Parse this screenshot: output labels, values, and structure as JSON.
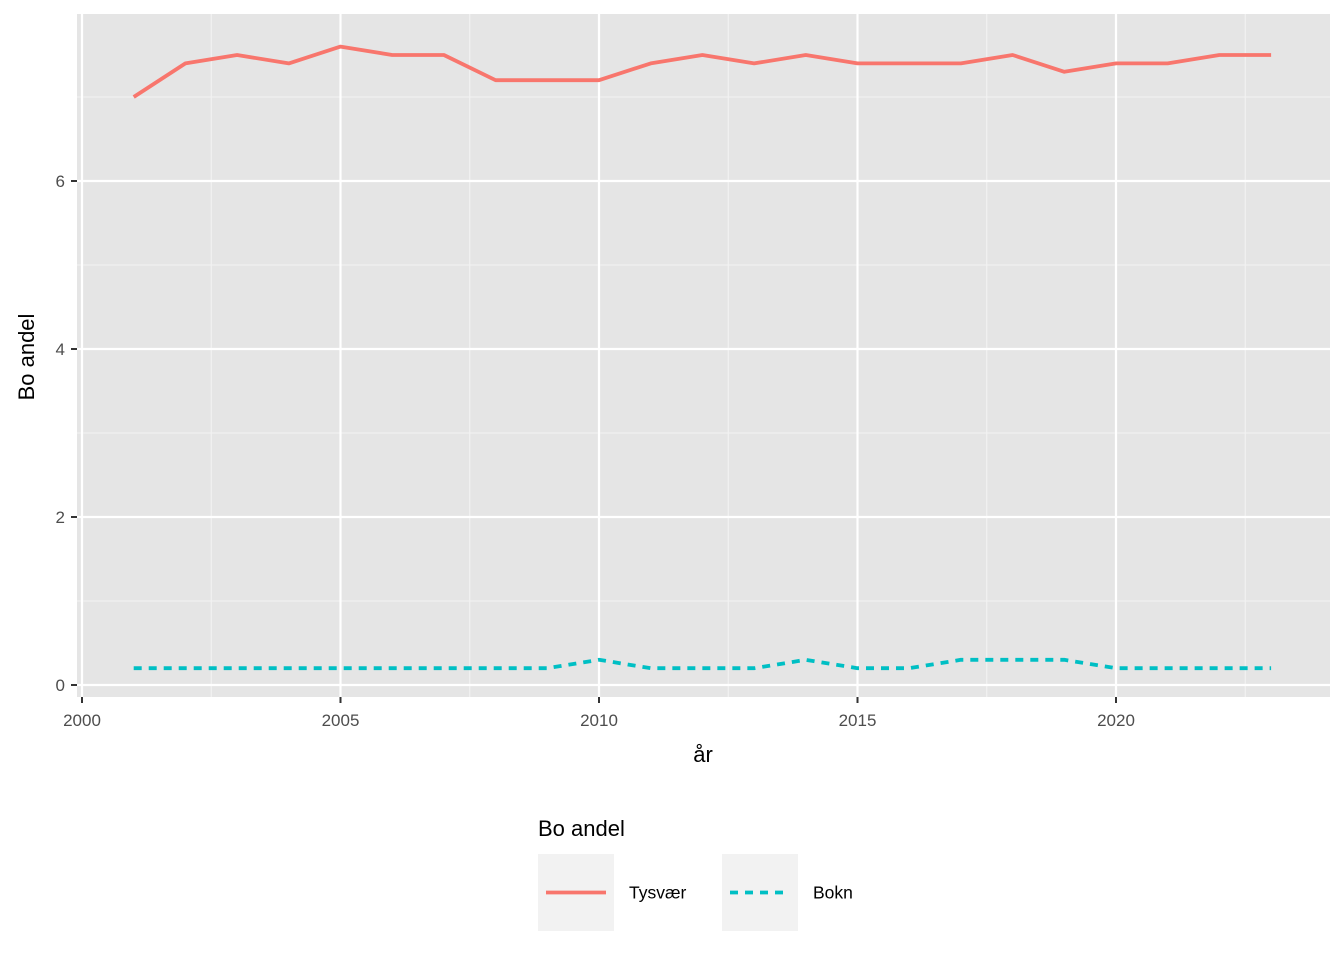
{
  "chart_data": {
    "type": "line",
    "title": "",
    "xlabel": "år",
    "ylabel": "Bo andel",
    "xlim": [
      2000,
      2024
    ],
    "ylim": [
      0,
      7.6
    ],
    "x_ticks": [
      2000,
      2005,
      2010,
      2015,
      2020
    ],
    "x_tick_labels": [
      "2000",
      "2005",
      "2010",
      "2015",
      "2020"
    ],
    "y_ticks": [
      0,
      2,
      4,
      6
    ],
    "y_tick_labels": [
      "0",
      "2",
      "4",
      "6"
    ],
    "grid": true,
    "panel_background": "#e5e5e5",
    "legend": {
      "title": "Bo andel",
      "position": "bottom"
    },
    "x": [
      2001,
      2002,
      2003,
      2004,
      2005,
      2006,
      2007,
      2008,
      2009,
      2010,
      2011,
      2012,
      2013,
      2014,
      2015,
      2016,
      2017,
      2018,
      2019,
      2020,
      2021,
      2022,
      2023
    ],
    "series": [
      {
        "name": "Tysvær",
        "color": "#f8766d",
        "line_style": "solid",
        "values": [
          7.0,
          7.4,
          7.5,
          7.4,
          7.6,
          7.5,
          7.5,
          7.2,
          7.2,
          7.2,
          7.4,
          7.5,
          7.4,
          7.5,
          7.4,
          7.4,
          7.4,
          7.5,
          7.3,
          7.4,
          7.4,
          7.5,
          7.5
        ]
      },
      {
        "name": "Bokn",
        "color": "#00bfc4",
        "line_style": "dashed",
        "values": [
          0.2,
          0.2,
          0.2,
          0.2,
          0.2,
          0.2,
          0.2,
          0.2,
          0.2,
          0.3,
          0.2,
          0.2,
          0.2,
          0.3,
          0.2,
          0.2,
          0.3,
          0.3,
          0.3,
          0.2,
          0.2,
          0.2,
          0.2
        ]
      }
    ]
  }
}
